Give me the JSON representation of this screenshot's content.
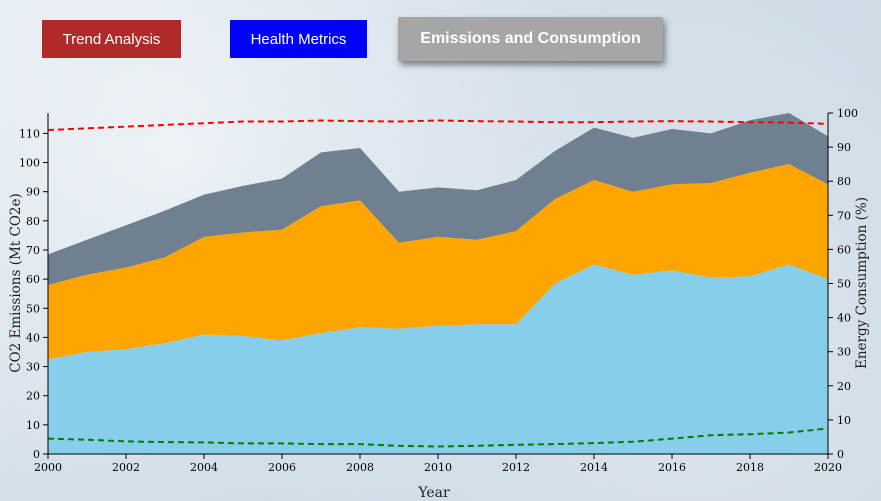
{
  "tabs": [
    {
      "label": "Trend Analysis",
      "color": "#b12a2a"
    },
    {
      "label": "Health Metrics",
      "color": "#0000ff"
    },
    {
      "label": "Emissions and Consumption",
      "color": "#a6a6a6"
    }
  ],
  "chart_data": {
    "type": "area",
    "title": "",
    "xlabel": "Year",
    "ylabel_left": "CO2 Emissions (Mt CO2e)",
    "ylabel_right": "Energy Consumption (%)",
    "xlim": [
      2000,
      2020
    ],
    "ylim_left": [
      0,
      117
    ],
    "ylim_right": [
      0,
      100
    ],
    "x_ticks": [
      2000,
      2002,
      2004,
      2006,
      2008,
      2010,
      2012,
      2014,
      2016,
      2018,
      2020
    ],
    "y_left_ticks": [
      0,
      10,
      20,
      30,
      40,
      50,
      60,
      70,
      80,
      90,
      100,
      110
    ],
    "y_right_ticks": [
      0,
      10,
      20,
      30,
      40,
      50,
      60,
      70,
      80,
      90,
      100
    ],
    "x": [
      2000,
      2001,
      2002,
      2003,
      2004,
      2005,
      2006,
      2007,
      2008,
      2009,
      2010,
      2011,
      2012,
      2013,
      2014,
      2015,
      2016,
      2017,
      2018,
      2019,
      2020
    ],
    "stacked_series": [
      {
        "color": "#87ceeb",
        "values": [
          32.5,
          35,
          36,
          38,
          41,
          40.5,
          39,
          41.5,
          43.5,
          43,
          44,
          44.5,
          44.5,
          58.5,
          65,
          61.5,
          63,
          60.5,
          61,
          65,
          60
        ]
      },
      {
        "color": "#ffa500",
        "values": [
          25.5,
          26.5,
          28,
          29.5,
          33.5,
          35.5,
          38,
          43.5,
          43.5,
          29.5,
          30.5,
          29,
          32,
          29,
          29,
          28.5,
          29.5,
          32.5,
          35.5,
          34.5,
          32.5
        ]
      },
      {
        "color": "#708090",
        "values": [
          10.5,
          12,
          14.5,
          16,
          14.5,
          16,
          17.5,
          18.5,
          18,
          17.5,
          17,
          17,
          17.5,
          16.5,
          18,
          18.5,
          19,
          17,
          18,
          17.5,
          16.5
        ]
      }
    ],
    "line_series": [
      {
        "axis": "right",
        "color": "#ff0000",
        "style": "dashed",
        "values": [
          95,
          95.5,
          96,
          96.5,
          97,
          97.5,
          97.5,
          97.8,
          97.6,
          97.5,
          97.8,
          97.6,
          97.5,
          97.3,
          97.3,
          97.5,
          97.6,
          97.5,
          97.3,
          97.2,
          96.8
        ]
      },
      {
        "axis": "right",
        "color": "#008000",
        "style": "dashed",
        "values": [
          4.5,
          4.2,
          3.7,
          3.5,
          3.4,
          3.1,
          3.1,
          2.9,
          2.9,
          2.4,
          2.2,
          2.4,
          2.7,
          2.9,
          3.2,
          3.6,
          4.5,
          5.5,
          5.8,
          6.3,
          7.5
        ]
      }
    ],
    "grid": false,
    "legend": "none"
  }
}
